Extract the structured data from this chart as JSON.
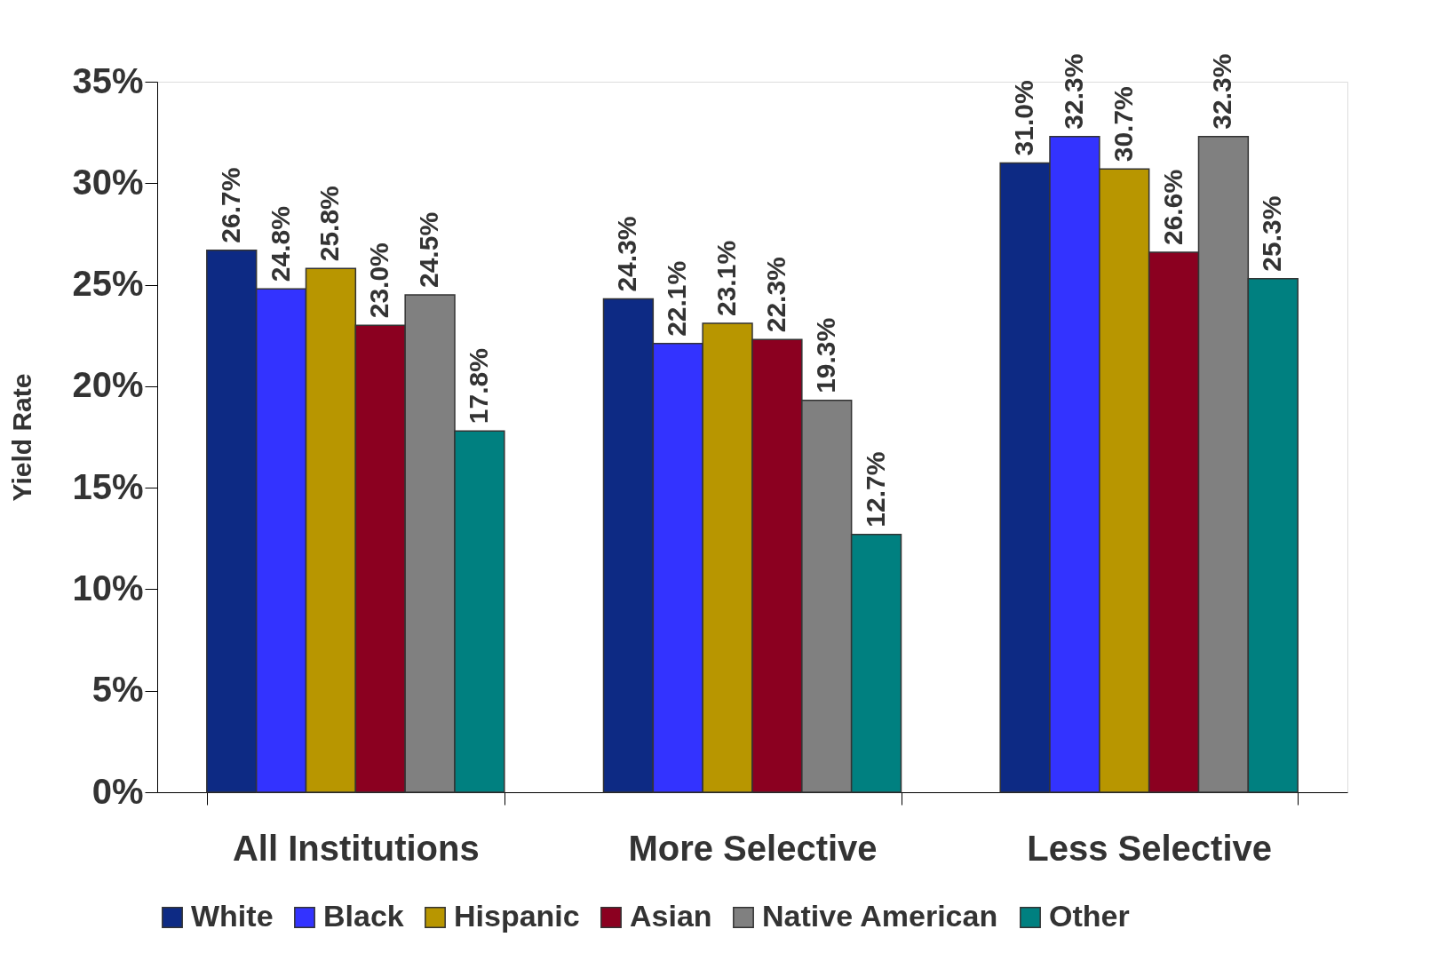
{
  "chart_data": {
    "type": "bar",
    "ylabel": "Yield Rate",
    "categories": [
      "All Institutions",
      "More Selective",
      "Less Selective"
    ],
    "series": [
      {
        "name": "White",
        "color": "#0d2a84",
        "values": [
          26.7,
          24.3,
          31.0
        ],
        "value_labels": [
          "26.7%",
          "24.3%",
          "31.0%"
        ]
      },
      {
        "name": "Black",
        "color": "#3333ff",
        "values": [
          24.8,
          22.1,
          32.3
        ],
        "value_labels": [
          "24.8%",
          "22.1%",
          "32.3%"
        ]
      },
      {
        "name": "Hispanic",
        "color": "#b89600",
        "values": [
          25.8,
          23.1,
          30.7
        ],
        "value_labels": [
          "25.8%",
          "23.1%",
          "30.7%"
        ]
      },
      {
        "name": "Asian",
        "color": "#8b0020",
        "values": [
          23.0,
          22.3,
          26.6
        ],
        "value_labels": [
          "23.0%",
          "22.3%",
          "26.6%"
        ]
      },
      {
        "name": "Native American",
        "color": "#808080",
        "values": [
          24.5,
          19.3,
          32.3
        ],
        "value_labels": [
          "24.5%",
          "19.3%",
          "32.3%"
        ]
      },
      {
        "name": "Other",
        "color": "#008080",
        "values": [
          17.8,
          12.7,
          25.3
        ],
        "value_labels": [
          "17.8%",
          "12.7%",
          "25.3%"
        ]
      }
    ],
    "ylim": [
      0,
      35
    ],
    "yticks": [
      {
        "value": 0,
        "label": "0%"
      },
      {
        "value": 5,
        "label": "5%"
      },
      {
        "value": 10,
        "label": "10%"
      },
      {
        "value": 15,
        "label": "15%"
      },
      {
        "value": 20,
        "label": "20%"
      },
      {
        "value": 25,
        "label": "25%"
      },
      {
        "value": 30,
        "label": "30%"
      },
      {
        "value": 35,
        "label": "35%"
      }
    ],
    "grid": false,
    "legend": "bottom"
  }
}
